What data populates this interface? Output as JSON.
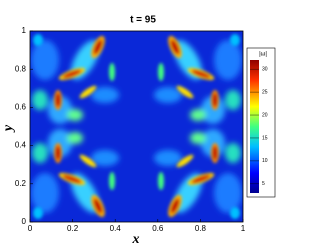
{
  "chart_data": {
    "type": "heatmap",
    "title": "t = 95",
    "xlabel": "x",
    "ylabel": "y",
    "xlim": [
      0,
      1
    ],
    "ylim": [
      0,
      1
    ],
    "xticks": [
      0,
      0.2,
      0.4,
      0.6,
      0.8,
      1
    ],
    "yticks": [
      0,
      0.2,
      0.4,
      0.6,
      0.8,
      1
    ],
    "colorbar": {
      "title": "|ω|",
      "lim": [
        3,
        32
      ],
      "ticks": [
        5,
        10,
        15,
        20,
        25,
        30
      ]
    }
  }
}
